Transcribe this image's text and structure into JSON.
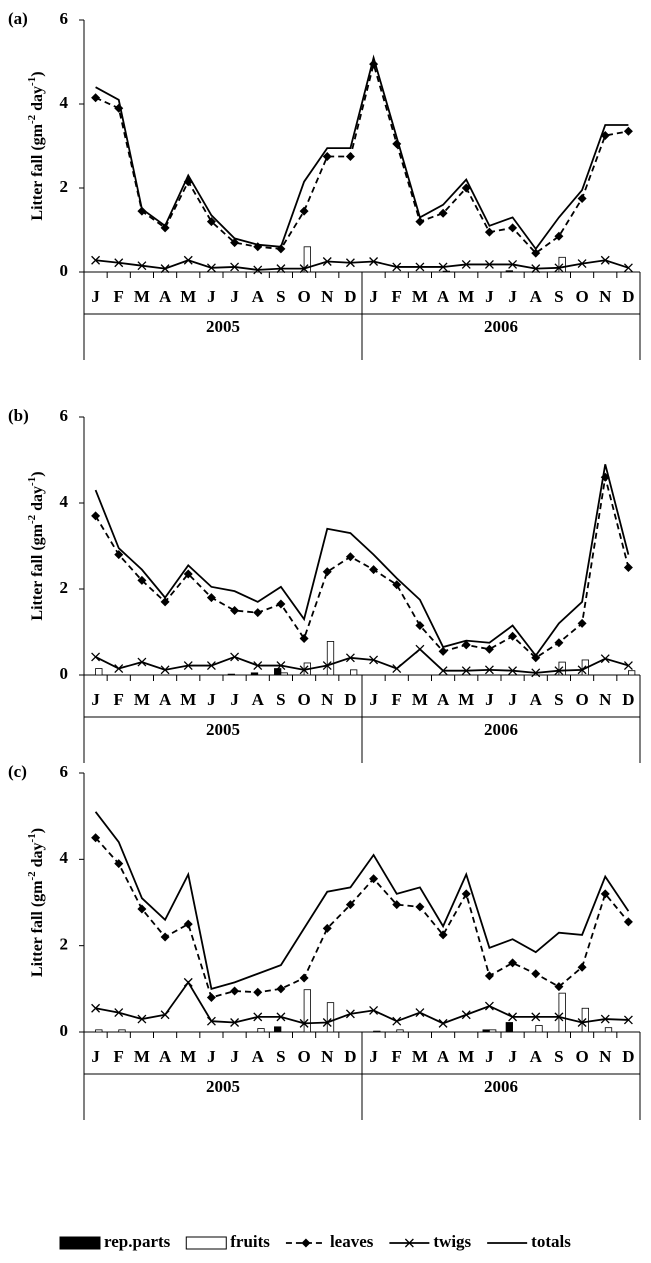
{
  "chart_data": [
    {
      "type": "combo",
      "panel": "(a)",
      "ylabel": [
        "Litter fall (gm",
        "-2",
        " day",
        "-1",
        ")"
      ],
      "categories": [
        "J",
        "F",
        "M",
        "A",
        "M",
        "J",
        "J",
        "A",
        "S",
        "O",
        "N",
        "D",
        "J",
        "F",
        "M",
        "A",
        "M",
        "J",
        "J",
        "A",
        "S",
        "O",
        "N",
        "D"
      ],
      "groups": [
        "2005",
        "2006"
      ],
      "ylim": [
        0,
        6
      ],
      "yticks": [
        0,
        2,
        4,
        6
      ],
      "series": [
        {
          "name": "rep.parts",
          "kind": "bar",
          "color": "#000000",
          "values": [
            0,
            0,
            0,
            0,
            0,
            0,
            0,
            0,
            0,
            0,
            0,
            0,
            0,
            0,
            0,
            0,
            0,
            0,
            0.03,
            0,
            0,
            0,
            0,
            0
          ]
        },
        {
          "name": "fruits",
          "kind": "bar",
          "color": "#ffffff",
          "values": [
            0,
            0,
            0,
            0,
            0,
            0,
            0,
            0,
            0,
            0.6,
            0,
            0,
            0,
            0,
            0,
            0.02,
            0,
            0,
            0,
            0,
            0.35,
            0,
            0,
            0
          ]
        },
        {
          "name": "leaves",
          "kind": "line",
          "color": "#000000",
          "dash": true,
          "marker": "diamond",
          "values": [
            4.15,
            3.9,
            1.45,
            1.05,
            2.15,
            1.2,
            0.7,
            0.6,
            0.55,
            1.45,
            2.75,
            2.75,
            4.95,
            3.05,
            1.2,
            1.4,
            2.0,
            0.95,
            1.05,
            0.45,
            0.85,
            1.75,
            3.25,
            3.35
          ]
        },
        {
          "name": "twigs",
          "kind": "line",
          "color": "#000000",
          "dash": false,
          "marker": "x",
          "values": [
            0.28,
            0.22,
            0.15,
            0.08,
            0.28,
            0.1,
            0.12,
            0.05,
            0.08,
            0.08,
            0.25,
            0.22,
            0.25,
            0.12,
            0.12,
            0.12,
            0.18,
            0.18,
            0.18,
            0.08,
            0.1,
            0.2,
            0.28,
            0.1
          ]
        },
        {
          "name": "totals",
          "kind": "line",
          "color": "#000000",
          "dash": false,
          "marker": "none",
          "values": [
            4.4,
            4.1,
            1.5,
            1.1,
            2.3,
            1.35,
            0.8,
            0.65,
            0.6,
            2.15,
            2.95,
            2.95,
            5.1,
            3.2,
            1.3,
            1.6,
            2.2,
            1.1,
            1.3,
            0.55,
            1.3,
            1.95,
            3.5,
            3.5
          ]
        }
      ]
    },
    {
      "type": "combo",
      "panel": "(b)",
      "ylabel": [
        "Litter fall (gm",
        "-2",
        " day",
        "-1",
        ")"
      ],
      "categories": [
        "J",
        "F",
        "M",
        "A",
        "M",
        "J",
        "J",
        "A",
        "S",
        "O",
        "N",
        "D",
        "J",
        "F",
        "M",
        "A",
        "M",
        "J",
        "J",
        "A",
        "S",
        "O",
        "N",
        "D"
      ],
      "groups": [
        "2005",
        "2006"
      ],
      "ylim": [
        0,
        6
      ],
      "yticks": [
        0,
        2,
        4,
        6
      ],
      "series": [
        {
          "name": "rep.parts",
          "kind": "bar",
          "color": "#000000",
          "values": [
            0,
            0,
            0,
            0,
            0,
            0,
            0.02,
            0.05,
            0.15,
            0,
            0,
            0,
            0,
            0,
            0,
            0,
            0,
            0,
            0,
            0,
            0,
            0,
            0,
            0
          ]
        },
        {
          "name": "fruits",
          "kind": "bar",
          "color": "#ffffff",
          "values": [
            0.15,
            0,
            0,
            0,
            0,
            0,
            0,
            0,
            0.05,
            0.28,
            0.78,
            0.12,
            0,
            0,
            0,
            0,
            0,
            0,
            0,
            0,
            0.3,
            0.35,
            0,
            0.1
          ]
        },
        {
          "name": "leaves",
          "kind": "line",
          "color": "#000000",
          "dash": true,
          "marker": "diamond",
          "values": [
            3.7,
            2.8,
            2.2,
            1.7,
            2.35,
            1.8,
            1.5,
            1.45,
            1.65,
            0.85,
            2.4,
            2.75,
            2.45,
            2.1,
            1.15,
            0.55,
            0.7,
            0.6,
            0.9,
            0.4,
            0.75,
            1.2,
            4.6,
            2.5
          ]
        },
        {
          "name": "twigs",
          "kind": "line",
          "color": "#000000",
          "dash": false,
          "marker": "x",
          "values": [
            0.42,
            0.15,
            0.3,
            0.12,
            0.22,
            0.22,
            0.42,
            0.22,
            0.22,
            0.12,
            0.22,
            0.4,
            0.35,
            0.15,
            0.6,
            0.1,
            0.1,
            0.12,
            0.1,
            0.05,
            0.1,
            0.12,
            0.38,
            0.22
          ]
        },
        {
          "name": "totals",
          "kind": "line",
          "color": "#000000",
          "dash": false,
          "marker": "none",
          "values": [
            4.3,
            2.95,
            2.45,
            1.8,
            2.55,
            2.05,
            1.95,
            1.7,
            2.05,
            1.3,
            3.4,
            3.3,
            2.8,
            2.25,
            1.75,
            0.65,
            0.8,
            0.75,
            1.15,
            0.45,
            1.2,
            1.7,
            4.9,
            2.8
          ]
        }
      ]
    },
    {
      "type": "combo",
      "panel": "(c)",
      "ylabel": [
        "Litter fall (gm",
        "-2",
        " day",
        "-1",
        ")"
      ],
      "categories": [
        "J",
        "F",
        "M",
        "A",
        "M",
        "J",
        "J",
        "A",
        "S",
        "O",
        "N",
        "D",
        "J",
        "F",
        "M",
        "A",
        "M",
        "J",
        "J",
        "A",
        "S",
        "O",
        "N",
        "D"
      ],
      "groups": [
        "2005",
        "2006"
      ],
      "ylim": [
        0,
        6
      ],
      "yticks": [
        0,
        2,
        4,
        6
      ],
      "series": [
        {
          "name": "rep.parts",
          "kind": "bar",
          "color": "#000000",
          "values": [
            0,
            0,
            0,
            0,
            0,
            0,
            0,
            0,
            0.12,
            0,
            0,
            0,
            0,
            0,
            0,
            0,
            0,
            0.05,
            0.22,
            0,
            0,
            0,
            0,
            0
          ]
        },
        {
          "name": "fruits",
          "kind": "bar",
          "color": "#ffffff",
          "values": [
            0.05,
            0.05,
            0,
            0,
            0,
            0,
            0,
            0.08,
            0,
            0.98,
            0.68,
            0,
            0.02,
            0.05,
            0,
            0,
            0,
            0.05,
            0,
            0.15,
            0.9,
            0.55,
            0.1,
            0
          ]
        },
        {
          "name": "leaves",
          "kind": "line",
          "color": "#000000",
          "dash": true,
          "marker": "diamond",
          "values": [
            4.5,
            3.9,
            2.85,
            2.2,
            2.5,
            0.8,
            0.95,
            0.92,
            1.0,
            1.25,
            2.4,
            2.95,
            3.55,
            2.95,
            2.9,
            2.25,
            3.2,
            1.3,
            1.6,
            1.35,
            1.05,
            1.5,
            3.2,
            2.55
          ]
        },
        {
          "name": "twigs",
          "kind": "line",
          "color": "#000000",
          "dash": false,
          "marker": "x",
          "values": [
            0.55,
            0.45,
            0.3,
            0.4,
            1.15,
            0.25,
            0.22,
            0.35,
            0.35,
            0.2,
            0.22,
            0.42,
            0.5,
            0.25,
            0.45,
            0.2,
            0.4,
            0.6,
            0.35,
            0.35,
            0.35,
            0.22,
            0.3,
            0.28
          ]
        },
        {
          "name": "totals",
          "kind": "line",
          "color": "#000000",
          "dash": false,
          "marker": "none",
          "values": [
            5.1,
            4.4,
            3.1,
            2.6,
            3.65,
            1.0,
            1.15,
            1.35,
            1.55,
            2.4,
            3.25,
            3.35,
            4.1,
            3.2,
            3.35,
            2.45,
            3.65,
            1.95,
            2.15,
            1.85,
            2.3,
            2.25,
            3.6,
            2.8
          ]
        }
      ]
    }
  ]
}
